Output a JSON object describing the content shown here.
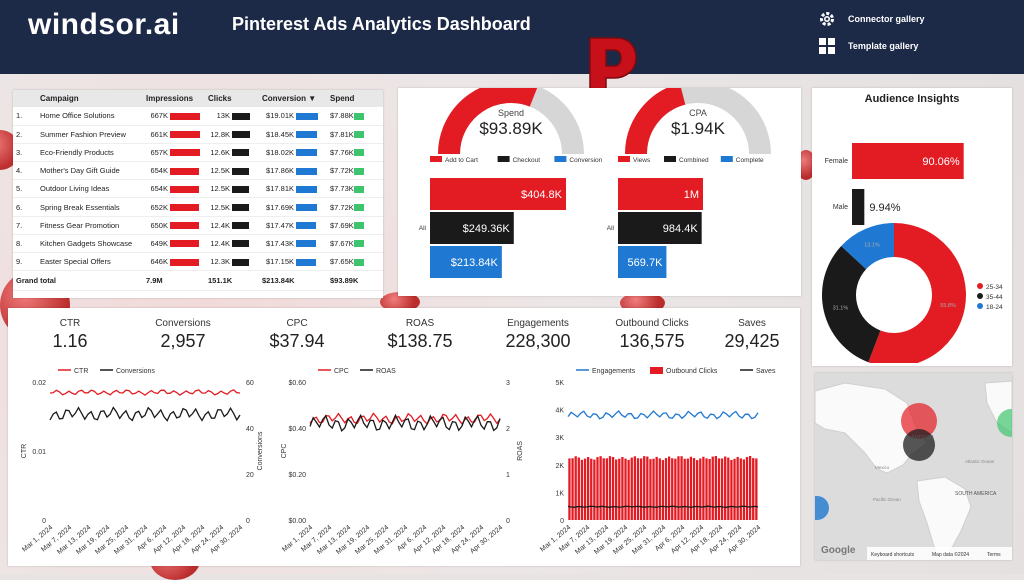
{
  "header": {
    "logo": "windsor.ai",
    "title": "Pinterest Ads Analytics Dashboard",
    "links": [
      {
        "label": "Connector gallery",
        "icon": "gear-icon"
      },
      {
        "label": "Template gallery",
        "icon": "grid-icon"
      }
    ]
  },
  "campaign_table": {
    "columns": [
      "Campaign",
      "Impressions",
      "Clicks",
      "Conversion ▼",
      "Spend"
    ],
    "rows": [
      {
        "n": "1.",
        "name": "Home Office Solutions",
        "impressions": "667K",
        "clicks": "13K",
        "conversion": "$19.01K",
        "spend": "$7.88K"
      },
      {
        "n": "2.",
        "name": "Summer Fashion Preview",
        "impressions": "661K",
        "clicks": "12.8K",
        "conversion": "$18.45K",
        "spend": "$7.81K"
      },
      {
        "n": "3.",
        "name": "Eco-Friendly Products",
        "impressions": "657K",
        "clicks": "12.6K",
        "conversion": "$18.02K",
        "spend": "$7.76K"
      },
      {
        "n": "4.",
        "name": "Mother's Day Gift Guide",
        "impressions": "654K",
        "clicks": "12.5K",
        "conversion": "$17.86K",
        "spend": "$7.72K"
      },
      {
        "n": "5.",
        "name": "Outdoor Living Ideas",
        "impressions": "654K",
        "clicks": "12.5K",
        "conversion": "$17.81K",
        "spend": "$7.73K"
      },
      {
        "n": "6.",
        "name": "Spring Break Essentials",
        "impressions": "652K",
        "clicks": "12.5K",
        "conversion": "$17.69K",
        "spend": "$7.72K"
      },
      {
        "n": "7.",
        "name": "Fitness Gear Promotion",
        "impressions": "650K",
        "clicks": "12.4K",
        "conversion": "$17.47K",
        "spend": "$7.69K"
      },
      {
        "n": "8.",
        "name": "Kitchen Gadgets Showcase",
        "impressions": "649K",
        "clicks": "12.4K",
        "conversion": "$17.43K",
        "spend": "$7.67K"
      },
      {
        "n": "9.",
        "name": "Easter Special Offers",
        "impressions": "646K",
        "clicks": "12.3K",
        "conversion": "$17.15K",
        "spend": "$7.65K"
      }
    ],
    "grand_total": {
      "label": "Grand total",
      "impressions": "7.9M",
      "clicks": "151.1K",
      "conversion": "$213.84K",
      "spend": "$93.89K"
    }
  },
  "colors": {
    "red": "#e31b23",
    "black": "#1a1a1a",
    "blue": "#1f78d1",
    "green": "#3ec46d",
    "gray": "#d6d6d6",
    "navy": "#1c2a48"
  },
  "spend_gauge": {
    "label": "Spend",
    "value": "$93.89K",
    "fill": 0.62
  },
  "cpa_gauge": {
    "label": "CPA",
    "value": "$1.94K",
    "fill": 0.42
  },
  "chart_data": [
    {
      "type": "bar",
      "orientation": "horizontal",
      "category": "All",
      "series": [
        {
          "name": "Add to Cart",
          "value": 404800,
          "label": "$404.8K",
          "color": "#e31b23"
        },
        {
          "name": "Checkout",
          "value": 249360,
          "label": "$249.36K",
          "color": "#1a1a1a"
        },
        {
          "name": "Conversion",
          "value": 213840,
          "label": "$213.84K",
          "color": "#1f78d1"
        }
      ]
    },
    {
      "type": "bar",
      "orientation": "horizontal",
      "category": "All",
      "series": [
        {
          "name": "Views",
          "value": 1000000,
          "label": "1M",
          "color": "#e31b23"
        },
        {
          "name": "Combined",
          "value": 984400,
          "label": "984.4K",
          "color": "#1a1a1a"
        },
        {
          "name": "Complete",
          "value": 569700,
          "label": "569.7K",
          "color": "#1f78d1"
        }
      ]
    },
    {
      "type": "bar",
      "orientation": "horizontal",
      "title": "Audience Insights",
      "categories": [
        "Female",
        "Male"
      ],
      "values": [
        90.06,
        9.94
      ],
      "labels": [
        "90.06%",
        "9.94%"
      ]
    },
    {
      "type": "pie",
      "donut": true,
      "slices": [
        {
          "name": "25-34",
          "value": 55.8,
          "label": "55.8%",
          "color": "#e31b23"
        },
        {
          "name": "35-44",
          "value": 31.1,
          "label": "31.1%",
          "color": "#1a1a1a"
        },
        {
          "name": "18-24",
          "value": 13.1,
          "label": "13.1%",
          "color": "#1f78d1"
        }
      ]
    },
    {
      "type": "line",
      "x_ticks": [
        "Mar 1, 2024",
        "Mar 7, 2024",
        "Mar 13, 2024",
        "Mar 19, 2024",
        "Mar 25, 2024",
        "Mar 31, 2024",
        "Apr 6, 2024",
        "Apr 12, 2024",
        "Apr 18, 2024",
        "Apr 24, 2024",
        "Apr 30, 2024"
      ],
      "ylabel": "CTR",
      "y2label": "Conversions",
      "ylim": [
        0,
        0.02
      ],
      "y_ticks": [
        "0",
        "0.01",
        "0.02"
      ],
      "y2lim": [
        0,
        60
      ],
      "y2_ticks": [
        "0",
        "20",
        "40",
        "60"
      ],
      "series": [
        {
          "name": "CTR",
          "axis": "left",
          "color": "#e31b23",
          "base": 0.0185,
          "amp": 0.0004
        },
        {
          "name": "Conversions",
          "axis": "right",
          "color": "#1a1a1a",
          "base": 46,
          "amp": 3
        }
      ]
    },
    {
      "type": "line",
      "x_ticks": [
        "Mar 1, 2024",
        "Mar 7, 2024",
        "Mar 13, 2024",
        "Mar 19, 2024",
        "Mar 25, 2024",
        "Mar 31, 2024",
        "Apr 6, 2024",
        "Apr 12, 2024",
        "Apr 18, 2024",
        "Apr 24, 2024",
        "Apr 30, 2024"
      ],
      "ylabel": "CPC",
      "y2label": "ROAS",
      "ylim": [
        0,
        3
      ],
      "y_ticks": [
        "$0.00",
        "$0.20",
        "$0.40",
        "$0.60"
      ],
      "y2lim": [
        0,
        3
      ],
      "y2_ticks": [
        "0",
        "1",
        "2",
        "3"
      ],
      "series": [
        {
          "name": "CPC",
          "axis": "left",
          "color": "#e31b23",
          "base": 2.2,
          "amp": 0.12
        },
        {
          "name": "ROAS",
          "axis": "right",
          "color": "#1a1a1a",
          "base": 2.1,
          "amp": 0.18
        }
      ]
    },
    {
      "type": "bar",
      "x_ticks": [
        "Mar 1, 2024",
        "Mar 7, 2024",
        "Mar 13, 2024",
        "Mar 19, 2024",
        "Mar 25, 2024",
        "Mar 31, 2024",
        "Apr 6, 2024",
        "Apr 12, 2024",
        "Apr 18, 2024",
        "Apr 24, 2024",
        "Apr 30, 2024"
      ],
      "ylabel": "",
      "y2label": "",
      "ylim": [
        0,
        5000
      ],
      "y_ticks": [
        "0",
        "1K",
        "2K",
        "3K",
        "4K",
        "5K"
      ],
      "series": [
        {
          "name": "Engagements",
          "kind": "line",
          "color": "#1f78d1",
          "base": 3800,
          "amp": 150
        },
        {
          "name": "Outbound Clicks",
          "kind": "bar",
          "color": "#e31b23",
          "base": 2250,
          "amp": 80
        },
        {
          "name": "Saves",
          "kind": "line",
          "color": "#1a1a1a",
          "base": 480,
          "amp": 20
        }
      ]
    }
  ],
  "kpis": [
    {
      "label": "CTR",
      "value": "1.16"
    },
    {
      "label": "Conversions",
      "value": "2,957"
    },
    {
      "label": "CPC",
      "value": "$37.94"
    },
    {
      "label": "ROAS",
      "value": "$138.75"
    },
    {
      "label": "Engagements",
      "value": "228,300"
    },
    {
      "label": "Outbound Clicks",
      "value": "136,575"
    },
    {
      "label": "Saves",
      "value": "29,425"
    }
  ],
  "map": {
    "labels": [
      "AMERICA",
      "Atlantic Ocean",
      "Pacific Ocean",
      "SOUTH AMERICA",
      "Mexico"
    ],
    "google": "Google",
    "footer": [
      "Keyboard shortcuts",
      "Map data ©2024",
      "Terms"
    ]
  },
  "audience_title": "Audience Insights"
}
